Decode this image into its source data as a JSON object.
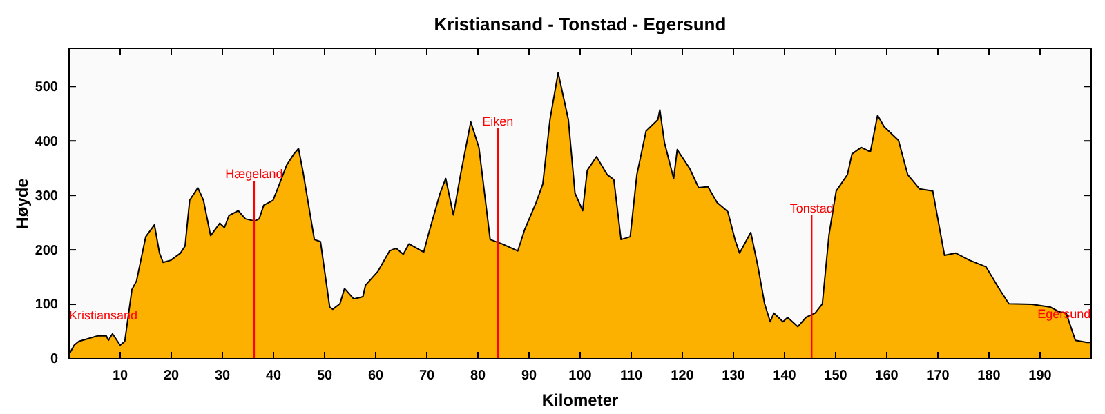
{
  "chart_data": {
    "type": "area",
    "title": "Kristiansand - Tonstad - Egersund",
    "xlabel": "Kilometer",
    "ylabel": "Høyde",
    "x": [
      0,
      1,
      1.9,
      4.1,
      5.5,
      7.3,
      7.7,
      8.5,
      10,
      10.9,
      12.3,
      13.2,
      15,
      16.7,
      17.7,
      18.4,
      19.9,
      21.8,
      22.7,
      23.6,
      25.2,
      26.3,
      27.7,
      29.5,
      30.4,
      31.3,
      33.1,
      34.5,
      36.3,
      37.2,
      38.1,
      39.9,
      40.8,
      42.6,
      44,
      44.9,
      45.8,
      48,
      49.2,
      51,
      51.6,
      53,
      53.9,
      55.7,
      57.5,
      58,
      60.4,
      62.7,
      64,
      65.4,
      66.5,
      69.4,
      70.3,
      72.6,
      73.7,
      75.2,
      76.6,
      78.6,
      80.2,
      82.4,
      84.7,
      87.8,
      89.1,
      91.4,
      92.7,
      94.1,
      95.7,
      97.7,
      99,
      100.5,
      101.4,
      103.2,
      105.3,
      106.6,
      108,
      109.8,
      111.1,
      112.9,
      115.2,
      115.6,
      116.5,
      118.3,
      119,
      121.4,
      123.2,
      125,
      126.8,
      128.9,
      130.3,
      131.2,
      133.4,
      134.8,
      136.1,
      137.2,
      137.9,
      139.7,
      140.6,
      142.6,
      144.2,
      146,
      147.4,
      148.7,
      150.1,
      152.3,
      153.2,
      155,
      156.8,
      158.2,
      159.5,
      162.3,
      164.1,
      166.4,
      169,
      171.3,
      173.5,
      176.2,
      179.4,
      182.1,
      183.9,
      188.4,
      192,
      193.8,
      195.1,
      196.9,
      199.2,
      199.9
    ],
    "series": [
      {
        "color": "#fcb000",
        "values": [
          8,
          25,
          32,
          38,
          42,
          42,
          34,
          46,
          25,
          32,
          127,
          143,
          224,
          246,
          194,
          177,
          181,
          194,
          207,
          291,
          314,
          291,
          226,
          249,
          241,
          263,
          272,
          257,
          253,
          257,
          282,
          291,
          312,
          356,
          376,
          386,
          342,
          219,
          215,
          95,
          91,
          101,
          129,
          110,
          114,
          135,
          160,
          198,
          203,
          192,
          211,
          196,
          228,
          304,
          331,
          264,
          338,
          435,
          388,
          219,
          211,
          198,
          236,
          287,
          321,
          439,
          525,
          439,
          304,
          272,
          346,
          371,
          338,
          329,
          219,
          224,
          338,
          418,
          439,
          457,
          397,
          331,
          384,
          350,
          314,
          316,
          287,
          270,
          219,
          194,
          232,
          169,
          101,
          68,
          84,
          68,
          76,
          59,
          76,
          84,
          101,
          228,
          308,
          338,
          376,
          388,
          380,
          447,
          426,
          401,
          338,
          312,
          308,
          190,
          194,
          181,
          169,
          127,
          101,
          100,
          95,
          86,
          84,
          34,
          30,
          30
        ]
      }
    ],
    "xlim": [
      0,
      200
    ],
    "ylim": [
      0,
      570
    ],
    "xticks": [
      10,
      20,
      30,
      40,
      50,
      60,
      70,
      80,
      90,
      100,
      110,
      120,
      130,
      140,
      150,
      160,
      170,
      180,
      190
    ],
    "yticks": [
      0,
      100,
      200,
      300,
      400,
      500
    ],
    "grid": false,
    "ref_lines": [
      {
        "axis": "x",
        "value": 0,
        "label": "Kristiansand",
        "color": "#ff0000"
      },
      {
        "axis": "x",
        "value": 36.2,
        "label": "Hægeland",
        "color": "#ff0000"
      },
      {
        "axis": "x",
        "value": 83.9,
        "label": "Eiken",
        "color": "#ff0000"
      },
      {
        "axis": "x",
        "value": 145.3,
        "label": "Tonstad",
        "color": "#ff0000"
      },
      {
        "axis": "x",
        "value": 199.9,
        "label": "Egersund",
        "color": "#ff0000"
      }
    ]
  }
}
